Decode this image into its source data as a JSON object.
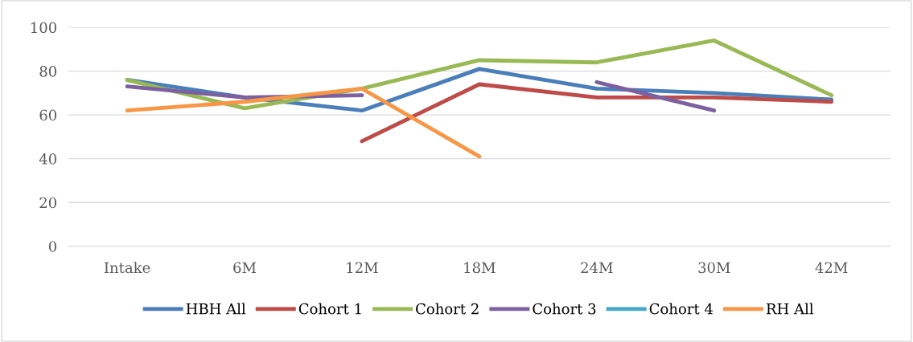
{
  "chart_data": {
    "type": "line",
    "categories": [
      "Intake",
      "6M",
      "12M",
      "18M",
      "24M",
      "30M",
      "42M"
    ],
    "ylim": [
      0,
      100
    ],
    "yticks": [
      0,
      20,
      40,
      60,
      80,
      100
    ],
    "grid": "y",
    "legend": "bottom",
    "line_style": "solid",
    "marker": "none",
    "series": [
      {
        "name": "HBH All",
        "color": "#4a7ebb",
        "values": [
          76,
          68,
          62,
          81,
          72,
          70,
          67
        ]
      },
      {
        "name": "Cohort 1",
        "color": "#be4b48",
        "values": [
          null,
          null,
          48,
          74,
          68,
          68,
          66
        ]
      },
      {
        "name": "Cohort 2",
        "color": "#98b954",
        "values": [
          76,
          63,
          72,
          85,
          84,
          94,
          69
        ]
      },
      {
        "name": "Cohort 3",
        "color": "#7d60a0",
        "values": [
          73,
          68,
          69,
          null,
          75,
          62,
          null
        ]
      },
      {
        "name": "Cohort 4",
        "color": "#46aac5",
        "values": [
          null,
          null,
          null,
          null,
          null,
          null,
          null
        ]
      },
      {
        "name": "RH All",
        "color": "#f79646",
        "values": [
          62,
          66,
          72,
          41,
          null,
          null,
          null
        ]
      }
    ]
  }
}
